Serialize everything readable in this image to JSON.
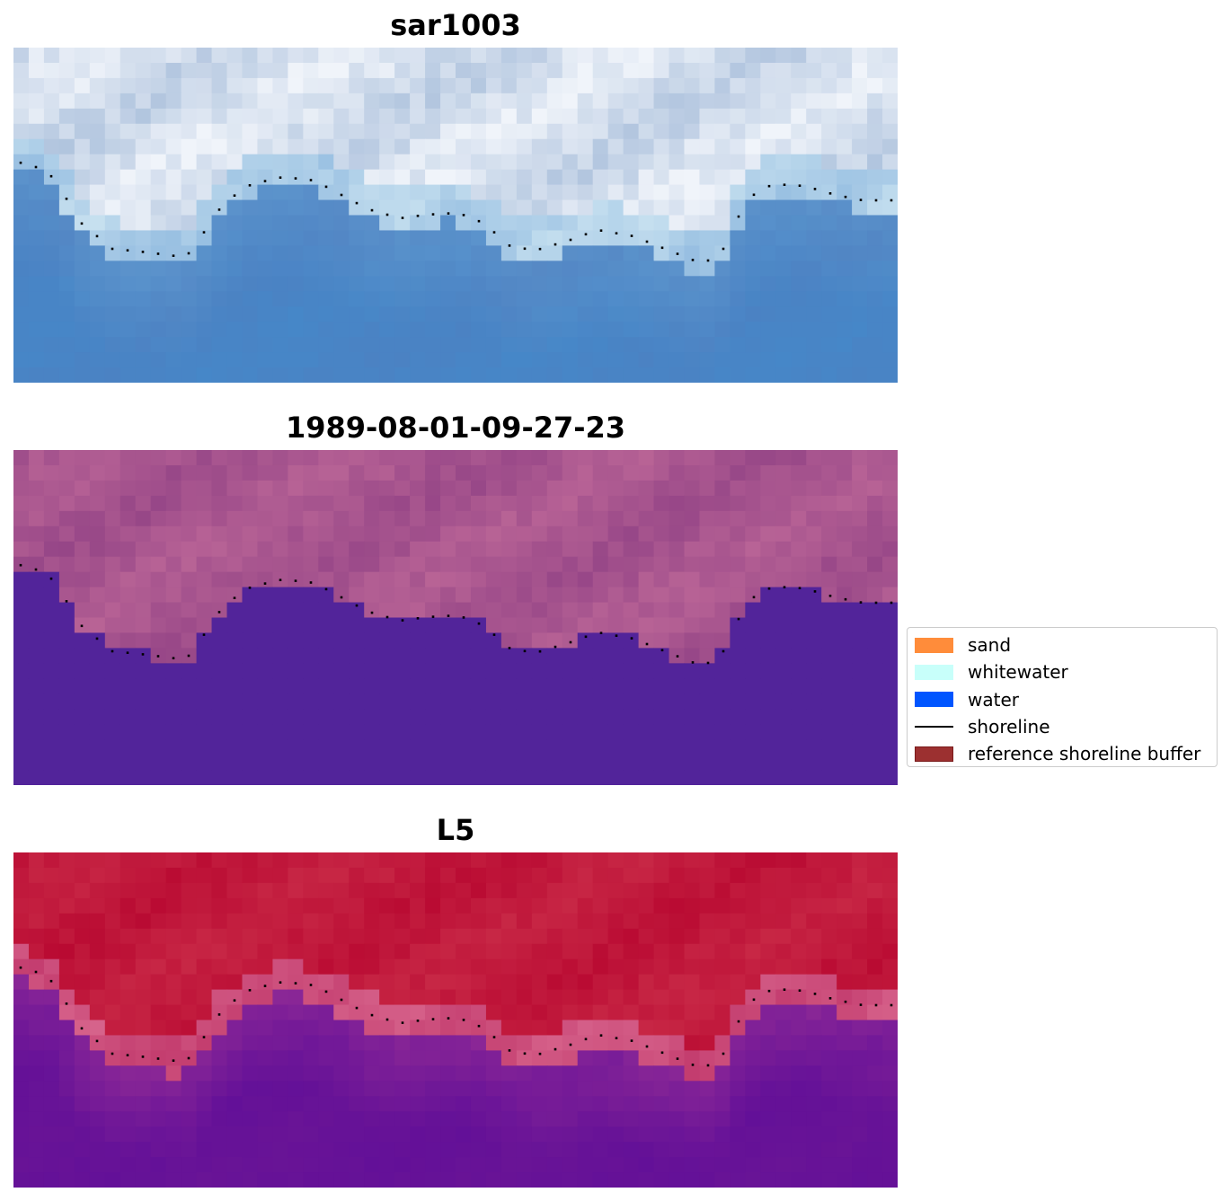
{
  "panels": [
    {
      "title": "sar1003",
      "style": "rgb"
    },
    {
      "title": "1989-08-01-09-27-23",
      "style": "classified"
    },
    {
      "title": "L5",
      "style": "index"
    }
  ],
  "legend": {
    "items": [
      {
        "label": "sand",
        "type": "patch",
        "color": "#ff8c3a"
      },
      {
        "label": "whitewater",
        "type": "patch",
        "color": "#c8fffa"
      },
      {
        "label": "water",
        "type": "patch",
        "color": "#0055ff"
      },
      {
        "label": "shoreline",
        "type": "line",
        "color": "#000000"
      },
      {
        "label": "reference shoreline buffer",
        "type": "patch",
        "color": "#9c3030",
        "edge": "#7a1a1a"
      }
    ]
  },
  "colors": {
    "water_class": "#52249a",
    "shoreline_points": "#000000"
  }
}
